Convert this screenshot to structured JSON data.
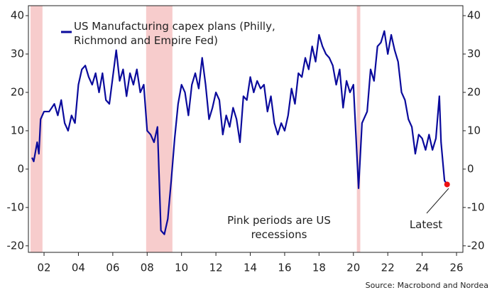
{
  "chart_data": {
    "type": "line",
    "series": [
      {
        "name": "US Manufacturing capex plans (Philly, Richmond and Empire Fed)",
        "color": "#0a0a9c",
        "x": [
          2001.3,
          2001.4,
          2001.6,
          2001.7,
          2001.8,
          2002.0,
          2002.3,
          2002.6,
          2002.8,
          2003.0,
          2003.2,
          2003.4,
          2003.6,
          2003.8,
          2004.0,
          2004.2,
          2004.4,
          2004.6,
          2004.8,
          2005.0,
          2005.2,
          2005.4,
          2005.6,
          2005.8,
          2006.0,
          2006.2,
          2006.4,
          2006.6,
          2006.8,
          2007.0,
          2007.2,
          2007.4,
          2007.6,
          2007.8,
          2008.0,
          2008.2,
          2008.4,
          2008.6,
          2008.8,
          2009.0,
          2009.2,
          2009.4,
          2009.6,
          2009.8,
          2010.0,
          2010.2,
          2010.4,
          2010.6,
          2010.8,
          2011.0,
          2011.2,
          2011.4,
          2011.6,
          2011.8,
          2012.0,
          2012.2,
          2012.4,
          2012.6,
          2012.8,
          2013.0,
          2013.2,
          2013.4,
          2013.6,
          2013.8,
          2014.0,
          2014.2,
          2014.4,
          2014.6,
          2014.8,
          2015.0,
          2015.2,
          2015.4,
          2015.6,
          2015.8,
          2016.0,
          2016.2,
          2016.4,
          2016.6,
          2016.8,
          2017.0,
          2017.2,
          2017.4,
          2017.6,
          2017.8,
          2018.0,
          2018.2,
          2018.4,
          2018.6,
          2018.8,
          2019.0,
          2019.2,
          2019.4,
          2019.6,
          2019.8,
          2020.0,
          2020.3,
          2020.5,
          2020.8,
          2021.0,
          2021.2,
          2021.4,
          2021.6,
          2021.8,
          2022.0,
          2022.2,
          2022.4,
          2022.6,
          2022.8,
          2023.0,
          2023.2,
          2023.4,
          2023.6,
          2023.8,
          2024.0,
          2024.2,
          2024.4,
          2024.6,
          2024.8,
          2025.0,
          2025.1,
          2025.3,
          2025.45
        ],
        "values": [
          3,
          2,
          7,
          4,
          13,
          15,
          15,
          17,
          14,
          18,
          12,
          10,
          14,
          12,
          22,
          26,
          27,
          24,
          22,
          25,
          20,
          25,
          18,
          17,
          24,
          31,
          23,
          26,
          19,
          25,
          22,
          26,
          20,
          22,
          10,
          9,
          7,
          11,
          -16,
          -17,
          -13,
          -3,
          8,
          17,
          22,
          20,
          14,
          22,
          25,
          21,
          29,
          22,
          13,
          16,
          20,
          18,
          9,
          14,
          11,
          16,
          13,
          7,
          19,
          18,
          24,
          20,
          23,
          21,
          22,
          15,
          19,
          12,
          9,
          12,
          10,
          14,
          21,
          17,
          25,
          24,
          29,
          26,
          32,
          28,
          35,
          32,
          30,
          29,
          27,
          22,
          26,
          16,
          23,
          20,
          22,
          -5,
          12,
          15,
          26,
          23,
          32,
          33,
          36,
          30,
          35,
          31,
          28,
          20,
          18,
          13,
          11,
          4,
          9,
          8,
          5,
          9,
          5,
          8,
          19,
          7,
          -3,
          -4
        ]
      }
    ],
    "shaded_periods": [
      [
        2001.21,
        2001.91
      ],
      [
        2007.94,
        2009.47
      ],
      [
        2020.2,
        2020.4
      ]
    ],
    "shade_color": "#f7cccc",
    "latest_color": "#ee1111",
    "xlim": [
      2001.09,
      2026.37
    ],
    "xticks": [
      {
        "value": 2002,
        "label": "02"
      },
      {
        "value": 2004,
        "label": "04"
      },
      {
        "value": 2006,
        "label": "06"
      },
      {
        "value": 2008,
        "label": "08"
      },
      {
        "value": 2010,
        "label": "10"
      },
      {
        "value": 2012,
        "label": "12"
      },
      {
        "value": 2014,
        "label": "14"
      },
      {
        "value": 2016,
        "label": "16"
      },
      {
        "value": 2018,
        "label": "18"
      },
      {
        "value": 2020,
        "label": "20"
      },
      {
        "value": 2022,
        "label": "22"
      },
      {
        "value": 2024,
        "label": "24"
      },
      {
        "value": 2026,
        "label": "26"
      }
    ],
    "ylim": [
      -21.7,
      42.6
    ],
    "yticks": [
      -20,
      -10,
      0,
      10,
      20,
      30,
      40
    ],
    "y2lim": [
      -21.7,
      42.6
    ],
    "y2ticks": [
      -20,
      -10,
      0,
      10,
      20,
      30,
      40
    ],
    "annotations": [
      "Pink periods are US recessions",
      "Latest"
    ],
    "source": "Source: Macrobond and Nordea"
  }
}
